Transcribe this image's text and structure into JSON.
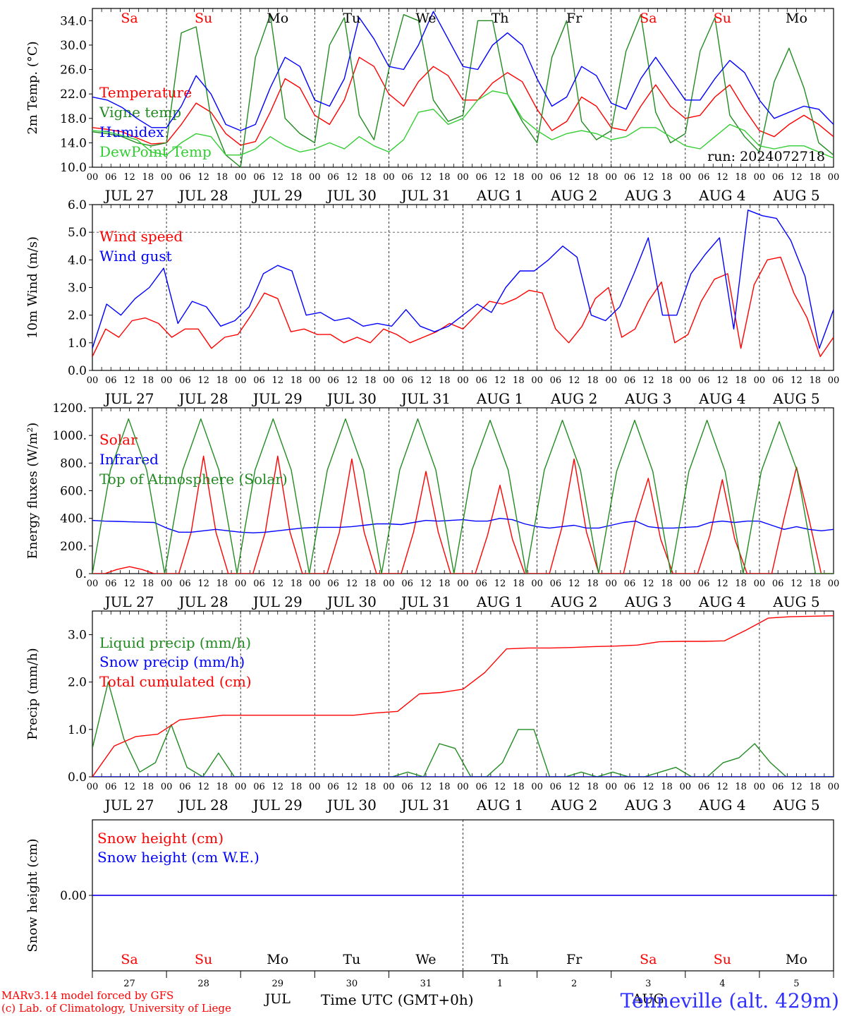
{
  "chart_data": {
    "type": "line",
    "run_label": "run: 2024072718",
    "days": [
      "JUL 27",
      "JUL 28",
      "JUL 29",
      "JUL 30",
      "JUL 31",
      "AUG  1",
      "AUG  2",
      "AUG  3",
      "AUG  4",
      "AUG  5"
    ],
    "weekdays": [
      "Sa",
      "Su",
      "Mo",
      "Tu",
      "We",
      "Th",
      "Fr",
      "Sa",
      "Su",
      "Mo"
    ],
    "weekend_flags": [
      true,
      true,
      false,
      false,
      false,
      false,
      false,
      true,
      true,
      false
    ],
    "hour_ticks": [
      "00",
      "06",
      "12",
      "18"
    ],
    "last_tick": "00",
    "weekend_color": "#ff0000",
    "weekday_color": "#000000",
    "panels": [
      {
        "ylabel": "2m Temp. (°C)",
        "ylim": [
          10,
          36
        ],
        "yticks": [
          "10.0",
          "14.0",
          "18.0",
          "22.0",
          "26.0",
          "30.0",
          "34.0"
        ],
        "ytick_values": [
          10,
          14,
          18,
          22,
          26,
          30,
          34
        ],
        "show_weekdays": true,
        "series": [
          {
            "name": "Temperature",
            "color": "#ff0000",
            "values": [
              16.5,
              16.2,
              15.8,
              14.8,
              13.8,
              14.0,
              17.0,
              20.5,
              19.0,
              15.5,
              13.6,
              14.2,
              19.0,
              24.5,
              23.0,
              18.5,
              17.0,
              21.0,
              28.0,
              26.5,
              22.0,
              20.0,
              24.0,
              26.5,
              25.0,
              21.0,
              21.0,
              23.8,
              25.5,
              24.0,
              19.5,
              16.0,
              17.5,
              21.5,
              20.0,
              16.5,
              16.0,
              20.0,
              23.5,
              20.0,
              18.0,
              18.5,
              21.5,
              23.5,
              19.5,
              16.0,
              15.0,
              17.0,
              18.5,
              17.0,
              15.0
            ]
          },
          {
            "name": "Vigne temp",
            "color": "#228b22",
            "values": [
              15.8,
              15.5,
              15.0,
              14.0,
              13.5,
              14.0,
              32.0,
              33.0,
              18.0,
              12.0,
              10.0,
              28.0,
              35.0,
              18.0,
              15.5,
              14.0,
              30.0,
              34.5,
              18.5,
              14.5,
              26.0,
              35.0,
              34.0,
              21.0,
              17.5,
              18.5,
              34.0,
              34.0,
              22.0,
              17.5,
              14.0,
              28.0,
              34.0,
              17.5,
              14.5,
              16.0,
              29.0,
              35.0,
              19.0,
              14.0,
              15.5,
              29.0,
              34.5,
              18.5,
              15.0,
              12.5,
              24.0,
              29.5,
              23.0,
              14.0,
              12.0
            ]
          },
          {
            "name": "Humidex",
            "color": "#0000ff",
            "values": [
              21.5,
              21.0,
              19.8,
              18.0,
              16.5,
              16.5,
              20.0,
              25.0,
              22.0,
              17.0,
              16.0,
              17.0,
              23.0,
              28.0,
              26.5,
              21.0,
              20.0,
              24.5,
              34.5,
              31.0,
              26.5,
              26.0,
              30.0,
              35.5,
              31.0,
              26.5,
              26.0,
              30.0,
              32.0,
              30.0,
              24.5,
              20.0,
              21.5,
              26.5,
              25.0,
              20.5,
              19.5,
              24.5,
              28.0,
              24.5,
              21.0,
              21.0,
              24.5,
              27.5,
              25.5,
              21.0,
              18.0,
              19.0,
              20.0,
              19.5,
              17.0
            ]
          },
          {
            "name": "DewPoint Temp",
            "color": "#32cd32",
            "values": [
              16.0,
              15.8,
              15.2,
              14.5,
              12.5,
              12.0,
              14.0,
              15.5,
              15.0,
              12.0,
              12.0,
              13.0,
              15.0,
              13.5,
              12.5,
              13.0,
              14.0,
              13.0,
              15.0,
              13.5,
              12.5,
              14.5,
              19.0,
              19.5,
              17.0,
              18.0,
              21.0,
              22.5,
              22.0,
              18.0,
              16.0,
              14.5,
              15.5,
              16.0,
              15.5,
              14.5,
              15.0,
              16.5,
              16.5,
              15.0,
              13.5,
              13.0,
              15.0,
              17.0,
              16.0,
              13.5,
              13.0,
              13.5,
              13.5,
              12.5,
              11.5
            ]
          }
        ]
      },
      {
        "ylabel": "10m Wind (m/s)",
        "ylim": [
          0,
          6
        ],
        "yticks": [
          "0.0",
          "1.0",
          "2.0",
          "3.0",
          "4.0",
          "5.0",
          "6.0"
        ],
        "ytick_values": [
          0,
          1,
          2,
          3,
          4,
          5,
          6
        ],
        "hline": 5.0,
        "show_weekdays": false,
        "series": [
          {
            "name": "Wind speed",
            "color": "#ff0000",
            "values": [
              0.5,
              1.5,
              1.2,
              1.8,
              1.9,
              1.7,
              1.2,
              1.5,
              1.5,
              0.8,
              1.2,
              1.3,
              2.0,
              2.8,
              2.6,
              1.4,
              1.5,
              1.3,
              1.3,
              1.0,
              1.2,
              1.0,
              1.5,
              1.3,
              1.0,
              1.2,
              1.4,
              1.7,
              1.5,
              2.0,
              2.5,
              2.4,
              2.6,
              2.9,
              2.8,
              1.5,
              1.0,
              1.6,
              2.6,
              3.0,
              1.2,
              1.5,
              2.5,
              3.2,
              1.0,
              1.3,
              2.5,
              3.3,
              3.5,
              0.8,
              3.1,
              4.0,
              4.1,
              2.8,
              1.9,
              0.5,
              1.2
            ]
          },
          {
            "name": "Wind gust",
            "color": "#0000ff",
            "values": [
              0.8,
              2.4,
              2.0,
              2.6,
              3.0,
              3.7,
              1.7,
              2.5,
              2.3,
              1.6,
              1.8,
              2.3,
              3.5,
              3.8,
              3.6,
              2.0,
              2.1,
              1.8,
              1.9,
              1.6,
              1.7,
              1.6,
              2.2,
              1.6,
              1.4,
              1.6,
              2.0,
              2.4,
              2.1,
              3.0,
              3.6,
              3.6,
              4.0,
              4.5,
              4.1,
              2.0,
              1.8,
              2.3,
              3.5,
              4.8,
              2.0,
              2.0,
              3.5,
              4.2,
              4.8,
              1.5,
              5.8,
              5.6,
              5.5,
              4.7,
              3.4,
              0.8,
              2.2
            ]
          }
        ]
      },
      {
        "ylabel": "Energy fluxes (W/m²)",
        "ylim": [
          0,
          1200
        ],
        "yticks": [
          "0.",
          "200.",
          "400.",
          "600.",
          "800.",
          "1000.",
          "1200."
        ],
        "ytick_values": [
          0,
          200,
          400,
          600,
          800,
          1000,
          1200
        ],
        "show_weekdays": false,
        "series": [
          {
            "name": "Solar",
            "color": "#ff0000",
            "values": [
              0,
              0,
              30,
              50,
              30,
              0,
              0,
              0,
              300,
              850,
              300,
              0,
              0,
              0,
              300,
              850,
              300,
              0,
              0,
              0,
              300,
              830,
              300,
              0,
              0,
              0,
              300,
              740,
              300,
              0,
              0,
              0,
              280,
              640,
              250,
              0,
              0,
              0,
              330,
              830,
              300,
              0,
              0,
              0,
              400,
              690,
              250,
              0,
              0,
              0,
              280,
              680,
              250,
              0,
              0,
              0,
              400,
              770,
              400,
              0,
              0
            ]
          },
          {
            "name": "Infrared",
            "color": "#0000ff",
            "values": [
              385,
              380,
              378,
              375,
              372,
              370,
              330,
              300,
              300,
              310,
              320,
              310,
              300,
              295,
              300,
              310,
              320,
              330,
              335,
              335,
              335,
              340,
              350,
              360,
              360,
              355,
              370,
              385,
              380,
              385,
              390,
              380,
              380,
              400,
              390,
              360,
              340,
              330,
              340,
              350,
              330,
              330,
              350,
              370,
              380,
              340,
              330,
              330,
              335,
              340,
              370,
              380,
              370,
              380,
              380,
              350,
              320,
              340,
              320,
              310,
              320
            ]
          },
          {
            "name": "Top of Atmosphere (Solar)",
            "color": "#228b22",
            "values": [
              0,
              750,
              1120,
              750,
              0,
              750,
              1120,
              750,
              0,
              750,
              1120,
              750,
              0,
              750,
              1120,
              750,
              0,
              750,
              1120,
              750,
              0,
              750,
              1110,
              750,
              0,
              750,
              1110,
              750,
              0,
              740,
              1110,
              740,
              0,
              740,
              1110,
              740,
              0,
              740,
              1100,
              740,
              0,
              0
            ]
          }
        ]
      },
      {
        "ylabel": "Precip (mm/h)",
        "ylim": [
          0,
          3.5
        ],
        "yticks": [
          "0.0",
          "1.0",
          "2.0",
          "3.0"
        ],
        "ytick_values": [
          0,
          1,
          2,
          3
        ],
        "show_weekdays": false,
        "series": [
          {
            "name": "Liquid precip (mm/h)",
            "color": "#228b22",
            "values": [
              0.6,
              2.0,
              0.8,
              0.1,
              0.3,
              1.1,
              0.2,
              0.0,
              0.5,
              0.0,
              0,
              0,
              0,
              0,
              0,
              0,
              0,
              0,
              0,
              0,
              0.1,
              0.0,
              0.7,
              0.6,
              0.0,
              0.0,
              0.3,
              1.0,
              1.0,
              0.0,
              0,
              0.1,
              0.0,
              0.1,
              0.0,
              0,
              0.1,
              0.2,
              0.0,
              0.0,
              0.3,
              0.4,
              0.7,
              0.3,
              0.0,
              0.0,
              0.0,
              0.0
            ]
          },
          {
            "name": "Snow precip (mm/h)",
            "color": "#0000ff",
            "values": [
              0,
              0,
              0,
              0,
              0,
              0,
              0,
              0,
              0,
              0,
              0,
              0,
              0,
              0,
              0,
              0,
              0,
              0,
              0,
              0,
              0,
              0
            ]
          },
          {
            "name": "Total cumulated (cm)",
            "color": "#ff0000",
            "values": [
              0.0,
              0.65,
              0.85,
              0.9,
              1.2,
              1.25,
              1.3,
              1.3,
              1.3,
              1.3,
              1.3,
              1.3,
              1.3,
              1.35,
              1.38,
              1.75,
              1.78,
              1.85,
              2.2,
              2.7,
              2.72,
              2.72,
              2.73,
              2.75,
              2.76,
              2.78,
              2.85,
              2.86,
              2.86,
              2.87,
              3.1,
              3.35,
              3.38,
              3.39,
              3.4
            ]
          }
        ]
      },
      {
        "ylabel": "Snow height (cm)",
        "ylim": [
          -1,
          1
        ],
        "yticks": [
          "0.00"
        ],
        "ytick_values": [
          0
        ],
        "show_weekdays": false,
        "series": [
          {
            "name": "Snow height (cm)",
            "color": "#ff0000",
            "values": [
              0,
              0
            ]
          },
          {
            "name": "Snow height (cm W.E.)",
            "color": "#0000ff",
            "values": [
              0,
              0
            ]
          }
        ]
      }
    ],
    "bottom_axis": {
      "day_numbers": [
        "27",
        "28",
        "29",
        "30",
        "31",
        "1",
        "2",
        "3",
        "4",
        "5"
      ],
      "month_labels": [
        "JUL",
        "AUG"
      ],
      "xlabel": "Time UTC (GMT+0h)"
    },
    "footer": {
      "credit_line1": "MARv3.14 model forced by GFS",
      "credit_line2": "(c) Lab. of Climatology, University of Liege",
      "location": "Tenneville (alt. 429m)"
    }
  }
}
